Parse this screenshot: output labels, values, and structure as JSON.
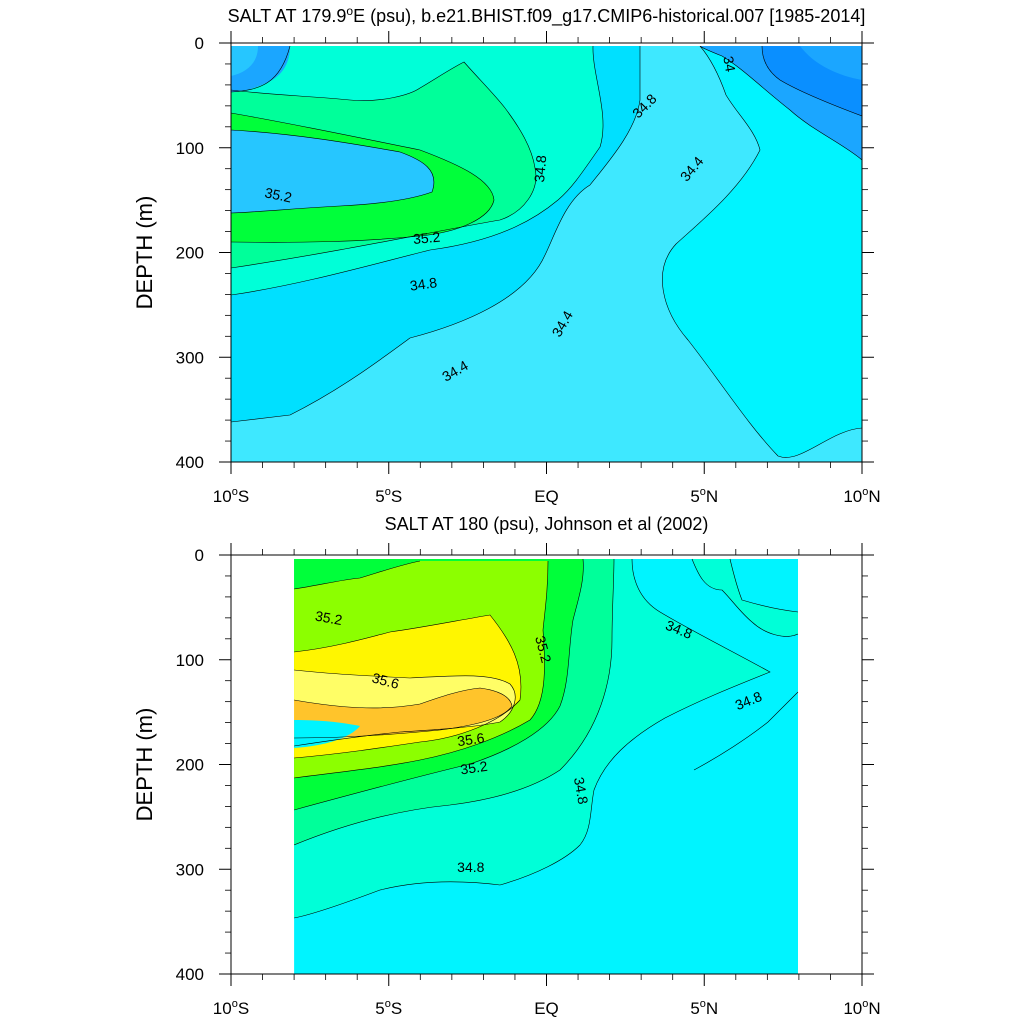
{
  "chart_data": [
    {
      "type": "contour",
      "title": "SALT AT 179.9°E (psu), b.e21.BHIST.f09_g17.CMIP6-historical.007 [1985-2014]",
      "title_parts": {
        "pre": "SALT AT 179.9",
        "sup": "o",
        "post": "E (psu), b.e21.BHIST.f09_g17.CMIP6-historical.007 [1985-2014]"
      },
      "ylabel": "DEPTH (m)",
      "xlim": [
        -10,
        10
      ],
      "ylim": [
        0,
        400
      ],
      "y_reversed": true,
      "data_x_range": [
        -10,
        10
      ],
      "contour_levels": [
        33.8,
        34.0,
        34.2,
        34.4,
        34.6,
        34.8,
        35.0,
        35.2,
        35.4
      ],
      "fill_colors": [
        "#0a8fff",
        "#1ba6ff",
        "#26c6ff",
        "#00e0ff",
        "#3ee8ff",
        "#00f4ff",
        "#00ffd8",
        "#00ff9a",
        "#00ff3a"
      ],
      "contour_labels": [
        {
          "x": 3.1,
          "depth": 60,
          "text": "34.8",
          "angle": -45
        },
        {
          "x": -8.5,
          "depth": 145,
          "text": "35.2",
          "angle": 12
        },
        {
          "x": -3.8,
          "depth": 186,
          "text": "35.2",
          "angle": -5
        },
        {
          "x": -3.9,
          "depth": 230,
          "text": "34.8",
          "angle": -8
        },
        {
          "x": -0.2,
          "depth": 120,
          "text": "34.8",
          "angle": -85
        },
        {
          "x": -2.9,
          "depth": 313,
          "text": "34.4",
          "angle": -30
        },
        {
          "x": 0.5,
          "depth": 268,
          "text": "34.4",
          "angle": -60
        },
        {
          "x": 4.6,
          "depth": 120,
          "text": "34.4",
          "angle": -50
        },
        {
          "x": 5.8,
          "depth": 20,
          "text": "34",
          "angle": 80
        }
      ]
    },
    {
      "type": "contour",
      "title": "SALT AT 180 (psu), Johnson et al (2002)",
      "ylabel": "DEPTH (m)",
      "xlim": [
        -10,
        10
      ],
      "ylim": [
        0,
        400
      ],
      "y_reversed": true,
      "data_x_range": [
        -8,
        8
      ],
      "contour_levels": [
        34.4,
        34.6,
        34.8,
        35.0,
        35.2,
        35.4,
        35.6,
        35.8
      ],
      "fill_colors": [
        "#00f4ff",
        "#00ffd8",
        "#00ff9a",
        "#00ff3a",
        "#8cff00",
        "#fff600",
        "#fffe66",
        "#ffc42b"
      ],
      "contour_labels": [
        {
          "x": -6.9,
          "depth": 60,
          "text": "35.2",
          "angle": 10
        },
        {
          "x": -5.1,
          "depth": 120,
          "text": "35.6",
          "angle": 15
        },
        {
          "x": -2.4,
          "depth": 176,
          "text": "35.6",
          "angle": -8
        },
        {
          "x": -2.3,
          "depth": 203,
          "text": "35.2",
          "angle": -8
        },
        {
          "x": -0.1,
          "depth": 90,
          "text": "35.2",
          "angle": 75
        },
        {
          "x": 4.2,
          "depth": 71,
          "text": "34.8",
          "angle": 22
        },
        {
          "x": 6.4,
          "depth": 139,
          "text": "34.8",
          "angle": -22
        },
        {
          "x": 1.1,
          "depth": 225,
          "text": "34.8",
          "angle": 80
        },
        {
          "x": -2.4,
          "depth": 298,
          "text": "34.8",
          "angle": 0
        }
      ]
    }
  ],
  "axes": {
    "x_ticks": [
      {
        "x": -10,
        "num": "10",
        "sup": "o",
        "hemi": "S"
      },
      {
        "x": -5,
        "num": "5",
        "sup": "o",
        "hemi": "S"
      },
      {
        "x": 0,
        "num": "EQ",
        "sup": "",
        "hemi": ""
      },
      {
        "x": 5,
        "num": "5",
        "sup": "o",
        "hemi": "N"
      },
      {
        "x": 10,
        "num": "10",
        "sup": "o",
        "hemi": "N"
      }
    ],
    "y_ticks": [
      0,
      100,
      200,
      300,
      400
    ]
  }
}
